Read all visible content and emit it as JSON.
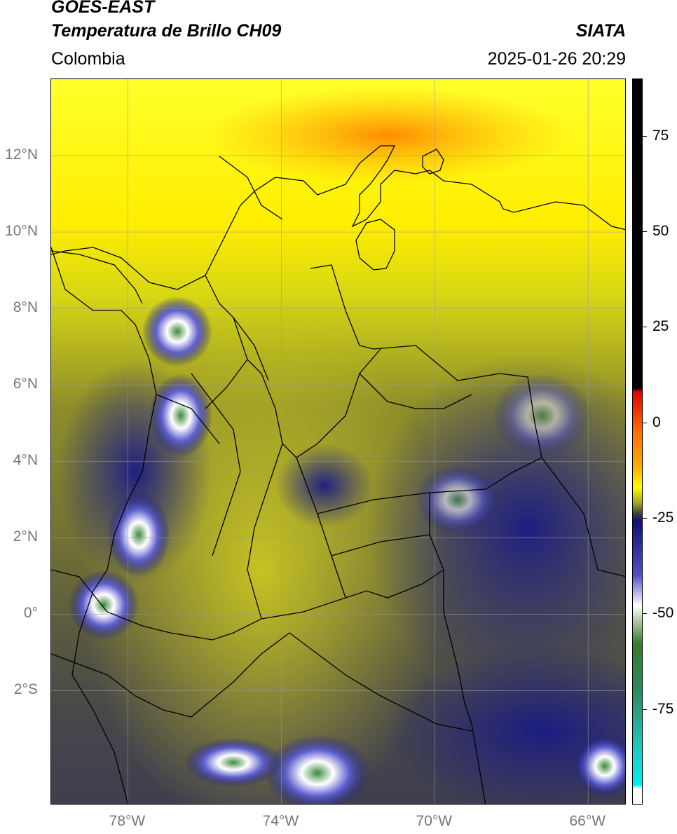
{
  "header": {
    "satellite": "GOES-EAST",
    "product": "Temperatura de Brillo CH09",
    "brand": "SIATA",
    "region": "Colombia",
    "datetime": "2025-01-26 20:29"
  },
  "map": {
    "lon_range": [
      -80,
      -65
    ],
    "lat_range": [
      -5,
      14
    ],
    "lat_ticks": [
      {
        "value": 12,
        "label": "12°N"
      },
      {
        "value": 10,
        "label": "10°N"
      },
      {
        "value": 8,
        "label": "8°N"
      },
      {
        "value": 6,
        "label": "6°N"
      },
      {
        "value": 4,
        "label": "4°N"
      },
      {
        "value": 2,
        "label": "2°N"
      },
      {
        "value": 0,
        "label": "0°"
      },
      {
        "value": -2,
        "label": "2°S"
      }
    ],
    "lon_ticks": [
      {
        "value": -78,
        "label": "78°W"
      },
      {
        "value": -74,
        "label": "74°W"
      },
      {
        "value": -70,
        "label": "70°W"
      },
      {
        "value": -66,
        "label": "66°W"
      }
    ],
    "gridlines": true
  },
  "colorbar": {
    "range": [
      -100,
      90
    ],
    "ticks": [
      {
        "value": 75,
        "label": "75"
      },
      {
        "value": 50,
        "label": "50"
      },
      {
        "value": 25,
        "label": "25"
      },
      {
        "value": 0,
        "label": "0"
      },
      {
        "value": -25,
        "label": "-25"
      },
      {
        "value": -50,
        "label": "-50"
      },
      {
        "value": -75,
        "label": "-75"
      }
    ],
    "stops": [
      {
        "value": 90,
        "color": "#000000"
      },
      {
        "value": 9,
        "color": "#000000"
      },
      {
        "value": 8,
        "color": "#e60000"
      },
      {
        "value": -2,
        "color": "#ff6a00"
      },
      {
        "value": -12,
        "color": "#ffb000"
      },
      {
        "value": -17,
        "color": "#ffff00"
      },
      {
        "value": -21,
        "color": "#a8a820"
      },
      {
        "value": -24,
        "color": "#3c3c3c"
      },
      {
        "value": -26,
        "color": "#10107a"
      },
      {
        "value": -40,
        "color": "#5050c8"
      },
      {
        "value": -48,
        "color": "#ffffff"
      },
      {
        "value": -58,
        "color": "#3a7a28"
      },
      {
        "value": -70,
        "color": "#2a8a5a"
      },
      {
        "value": -85,
        "color": "#20c8c0"
      },
      {
        "value": -95,
        "color": "#00f0f0"
      },
      {
        "value": -96,
        "color": "#ffffff"
      },
      {
        "value": -100,
        "color": "#ffffff"
      }
    ]
  }
}
